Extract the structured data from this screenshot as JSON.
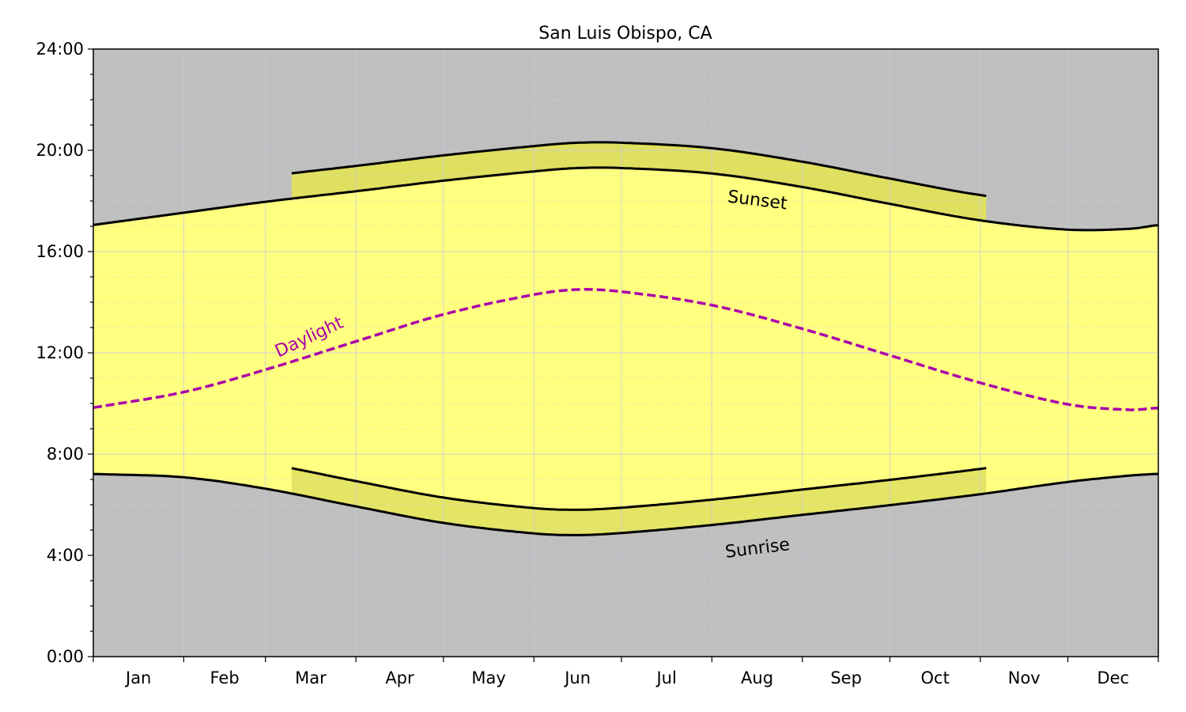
{
  "chart_data": {
    "type": "area",
    "title": "San Luis Obispo, CA",
    "xlabel": "",
    "ylabel": "",
    "x_tick_labels": [
      "Jan",
      "Feb",
      "Mar",
      "Apr",
      "May",
      "Jun",
      "Jul",
      "Aug",
      "Sep",
      "Oct",
      "Nov",
      "Dec"
    ],
    "y_tick_labels": [
      "0:00",
      "4:00",
      "8:00",
      "12:00",
      "16:00",
      "20:00",
      "24:00"
    ],
    "ylim": [
      "0:00",
      "24:00"
    ],
    "grid": true,
    "dates": [
      "01-01",
      "02-01",
      "03-01",
      "04-01",
      "05-01",
      "06-01",
      "06-16",
      "07-01",
      "08-01",
      "09-01",
      "10-01",
      "11-01",
      "12-01",
      "12-22",
      "12-31"
    ],
    "series": [
      {
        "name": "Sunset",
        "style": "solid",
        "values": [
          "17:03",
          "17:32",
          "17:58",
          "18:23",
          "18:48",
          "19:10",
          "19:18",
          "19:18",
          "19:05",
          "18:33",
          "17:53",
          "17:14",
          "16:52",
          "16:54",
          "17:02"
        ]
      },
      {
        "name": "Sunrise",
        "style": "solid",
        "values": [
          "7:13",
          "7:05",
          "6:38",
          "5:56",
          "5:17",
          "4:52",
          "4:48",
          "4:53",
          "5:12",
          "5:36",
          "5:59",
          "6:25",
          "6:54",
          "7:09",
          "7:13"
        ]
      },
      {
        "name": "Daylight",
        "style": "dashed",
        "values": [
          "9:50",
          "10:27",
          "11:20",
          "12:27",
          "13:31",
          "14:18",
          "14:30",
          "14:25",
          "13:53",
          "12:57",
          "11:54",
          "10:49",
          "9:58",
          "9:45",
          "9:49"
        ]
      }
    ],
    "daylight_saving": {
      "start": "03-10",
      "end": "11-03",
      "offset_hours": 1
    },
    "colors": {
      "night": "#bfbfbf",
      "day": "#ffff80",
      "dst_band": "#dfdf60",
      "daylight_line": "#aa00aa",
      "curve": "#000000"
    }
  }
}
